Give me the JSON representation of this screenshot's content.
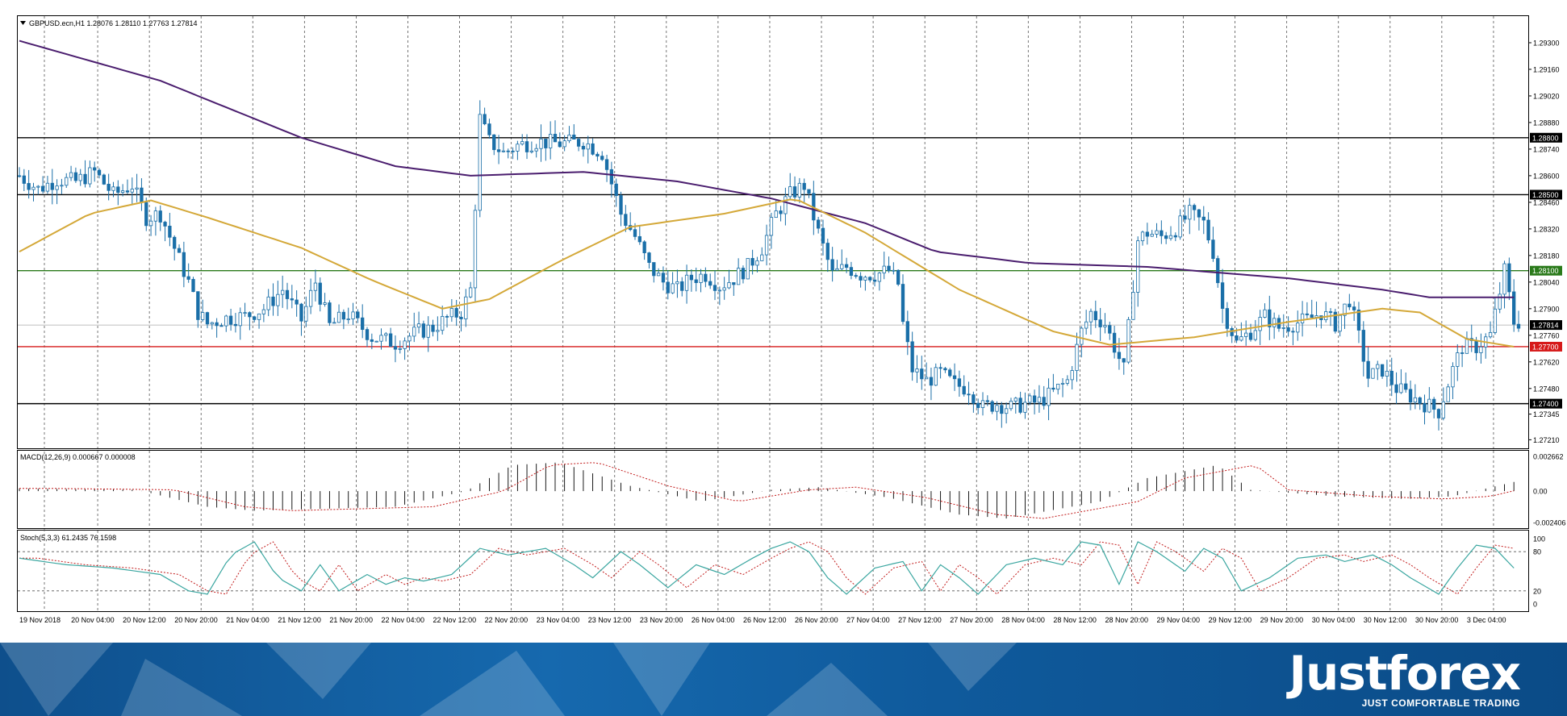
{
  "header_label": "GBPUSD.ecn,H1  1.28076 1.28110 1.27763 1.27814",
  "macd_label": "MACD(12,26,9) 0.000667 0.000008",
  "stoch_label": "Stoch(5,3,3) 61.2435 76.1598",
  "price_ticks": [
    "1.29300",
    "1.29160",
    "1.29020",
    "1.28880",
    "1.28740",
    "1.28600",
    "1.28460",
    "1.28320",
    "1.28180",
    "1.28040",
    "1.27900",
    "1.27760",
    "1.27620",
    "1.27480",
    "1.27345",
    "1.27210"
  ],
  "macd_ticks": [
    "0.002662",
    "0.00",
    "-0.002406"
  ],
  "stoch_ticks": [
    "100",
    "80",
    "20",
    "0"
  ],
  "time_labels": [
    "19 Nov 2018",
    "20 Nov 04:00",
    "20 Nov 12:00",
    "20 Nov 20:00",
    "21 Nov 04:00",
    "21 Nov 12:00",
    "21 Nov 20:00",
    "22 Nov 04:00",
    "22 Nov 12:00",
    "22 Nov 20:00",
    "23 Nov 04:00",
    "23 Nov 12:00",
    "23 Nov 20:00",
    "26 Nov 04:00",
    "26 Nov 12:00",
    "26 Nov 20:00",
    "27 Nov 04:00",
    "27 Nov 12:00",
    "27 Nov 20:00",
    "28 Nov 04:00",
    "28 Nov 12:00",
    "28 Nov 20:00",
    "29 Nov 04:00",
    "29 Nov 12:00",
    "29 Nov 20:00",
    "30 Nov 04:00",
    "30 Nov 12:00",
    "30 Nov 20:00",
    "3 Dec 04:00"
  ],
  "brand": {
    "name": "Justforex",
    "slogan": "JUST COMFORTABLE TRADING"
  },
  "colors": {
    "candle_up": "#ffffff",
    "candle_down": "#1a6fa8",
    "ma_slow": "#4a1d6e",
    "ma_fast": "#d4a838",
    "support": "#d61a1a",
    "pivot": "#2a7a1a",
    "level": "#000000",
    "stoch_main": "#3aa6a0",
    "stoch_signal": "#c21a1a",
    "macd_signal": "#c21a1a"
  },
  "chart_data": {
    "type": "candlestick",
    "symbol": "GBPUSD.ecn",
    "timeframe": "H1",
    "ohlc_last": {
      "open": 1.28076,
      "high": 1.2811,
      "low": 1.27763,
      "close": 1.27814
    },
    "y_range": [
      1.27165,
      1.2944
    ],
    "horizontal_levels": [
      {
        "price": 1.288,
        "label": "1.28800",
        "color": "#000000"
      },
      {
        "price": 1.285,
        "label": "1.28500",
        "color": "#000000"
      },
      {
        "price": 1.281,
        "label": "1.28100",
        "color": "#2a7a1a"
      },
      {
        "price": 1.27814,
        "label": "1.27814",
        "color": "#aaaaaa"
      },
      {
        "price": 1.277,
        "label": "1.27700",
        "color": "#d61a1a"
      },
      {
        "price": 1.274,
        "label": "1.27400",
        "color": "#000000"
      }
    ],
    "close_path": [
      [
        0,
        1.286
      ],
      [
        4,
        1.2853
      ],
      [
        8,
        1.2858
      ],
      [
        12,
        1.2857
      ],
      [
        16,
        1.2862
      ],
      [
        20,
        1.285
      ],
      [
        24,
        1.2855
      ],
      [
        27,
        1.2838
      ],
      [
        30,
        1.284
      ],
      [
        33,
        1.2822
      ],
      [
        36,
        1.2804
      ],
      [
        38,
        1.2788
      ],
      [
        40,
        1.2782
      ],
      [
        44,
        1.2785
      ],
      [
        48,
        1.2786
      ],
      [
        52,
        1.279
      ],
      [
        56,
        1.28
      ],
      [
        60,
        1.2784
      ],
      [
        63,
        1.2804
      ],
      [
        66,
        1.2781
      ],
      [
        70,
        1.2787
      ],
      [
        75,
        1.2775
      ],
      [
        80,
        1.2772
      ],
      [
        85,
        1.2778
      ],
      [
        88,
        1.278
      ],
      [
        91,
        1.2785
      ],
      [
        94,
        1.2788
      ],
      [
        96,
        1.28
      ],
      [
        98,
        1.289
      ],
      [
        100,
        1.2878
      ],
      [
        103,
        1.2872
      ],
      [
        106,
        1.2876
      ],
      [
        110,
        1.2878
      ],
      [
        115,
        1.2877
      ],
      [
        120,
        1.2878
      ],
      [
        124,
        1.2872
      ],
      [
        128,
        1.284
      ],
      [
        131,
        1.2828
      ],
      [
        134,
        1.2812
      ],
      [
        137,
        1.2804
      ],
      [
        140,
        1.28
      ],
      [
        143,
        1.2806
      ],
      [
        146,
        1.2808
      ],
      [
        149,
        1.2802
      ],
      [
        152,
        1.2806
      ],
      [
        155,
        1.2812
      ],
      [
        158,
        1.2822
      ],
      [
        161,
        1.284
      ],
      [
        164,
        1.285
      ],
      [
        167,
        1.2855
      ],
      [
        170,
        1.283
      ],
      [
        173,
        1.2808
      ],
      [
        176,
        1.2812
      ],
      [
        179,
        1.2808
      ],
      [
        182,
        1.2808
      ],
      [
        185,
        1.281
      ],
      [
        187,
        1.2803
      ],
      [
        188,
        1.2782
      ],
      [
        190,
        1.2758
      ],
      [
        193,
        1.2752
      ],
      [
        196,
        1.2756
      ],
      [
        199,
        1.275
      ],
      [
        202,
        1.2748
      ],
      [
        205,
        1.2738
      ],
      [
        208,
        1.274
      ],
      [
        211,
        1.2738
      ],
      [
        214,
        1.274
      ],
      [
        217,
        1.2741
      ],
      [
        220,
        1.2746
      ],
      [
        223,
        1.2752
      ],
      [
        226,
        1.2778
      ],
      [
        228,
        1.2788
      ],
      [
        231,
        1.2782
      ],
      [
        233,
        1.277
      ],
      [
        235,
        1.2758
      ],
      [
        236,
        1.278
      ],
      [
        238,
        1.2826
      ],
      [
        240,
        1.283
      ],
      [
        243,
        1.2828
      ],
      [
        246,
        1.2832
      ],
      [
        249,
        1.284
      ],
      [
        252,
        1.2835
      ],
      [
        254,
        1.282
      ],
      [
        256,
        1.279
      ],
      [
        259,
        1.2772
      ],
      [
        262,
        1.2778
      ],
      [
        265,
        1.2786
      ],
      [
        268,
        1.278
      ],
      [
        271,
        1.2782
      ],
      [
        274,
        1.2784
      ],
      [
        277,
        1.2788
      ],
      [
        280,
        1.2782
      ],
      [
        283,
        1.2795
      ],
      [
        285,
        1.2775
      ],
      [
        287,
        1.2754
      ],
      [
        290,
        1.2758
      ],
      [
        293,
        1.2748
      ],
      [
        296,
        1.2744
      ],
      [
        299,
        1.274
      ],
      [
        302,
        1.2736
      ],
      [
        305,
        1.2758
      ],
      [
        307,
        1.277
      ],
      [
        310,
        1.277
      ],
      [
        313,
        1.2776
      ],
      [
        316,
        1.281
      ],
      [
        318,
        1.2783
      ]
    ],
    "ma_slow": [
      [
        0,
        1.2931
      ],
      [
        30,
        1.291
      ],
      [
        60,
        1.288
      ],
      [
        80,
        1.2865
      ],
      [
        96,
        1.286
      ],
      [
        120,
        1.2862
      ],
      [
        140,
        1.2857
      ],
      [
        160,
        1.2848
      ],
      [
        180,
        1.2835
      ],
      [
        195,
        1.282
      ],
      [
        215,
        1.2814
      ],
      [
        240,
        1.2812
      ],
      [
        270,
        1.2806
      ],
      [
        290,
        1.28
      ],
      [
        300,
        1.2796
      ],
      [
        317,
        1.2796
      ]
    ],
    "ma_fast": [
      [
        0,
        1.282
      ],
      [
        15,
        1.284
      ],
      [
        28,
        1.2847
      ],
      [
        40,
        1.2838
      ],
      [
        60,
        1.2822
      ],
      [
        75,
        1.2805
      ],
      [
        90,
        1.279
      ],
      [
        100,
        1.2795
      ],
      [
        115,
        1.2815
      ],
      [
        130,
        1.2833
      ],
      [
        150,
        1.284
      ],
      [
        165,
        1.2848
      ],
      [
        180,
        1.283
      ],
      [
        200,
        1.28
      ],
      [
        220,
        1.2778
      ],
      [
        232,
        1.2771
      ],
      [
        250,
        1.2775
      ],
      [
        270,
        1.2783
      ],
      [
        290,
        1.279
      ],
      [
        298,
        1.2788
      ],
      [
        308,
        1.2774
      ],
      [
        318,
        1.277
      ]
    ],
    "macd_hist": [
      [
        0,
        0.0002
      ],
      [
        25,
        0.0001
      ],
      [
        40,
        -0.0012
      ],
      [
        50,
        -0.0015
      ],
      [
        80,
        -0.0012
      ],
      [
        95,
        0.0
      ],
      [
        105,
        0.002
      ],
      [
        115,
        0.0022
      ],
      [
        130,
        0.0004
      ],
      [
        145,
        -0.0008
      ],
      [
        160,
        0.0001
      ],
      [
        170,
        0.0003
      ],
      [
        185,
        -0.0005
      ],
      [
        200,
        -0.0018
      ],
      [
        210,
        -0.0021
      ],
      [
        230,
        -0.0008
      ],
      [
        240,
        0.001
      ],
      [
        255,
        0.002
      ],
      [
        262,
        0.0001
      ],
      [
        280,
        -0.0004
      ],
      [
        295,
        -0.0006
      ],
      [
        305,
        -0.0004
      ],
      [
        318,
        0.0007
      ]
    ],
    "stoch_main": [
      [
        0,
        70
      ],
      [
        10,
        60
      ],
      [
        20,
        55
      ],
      [
        30,
        45
      ],
      [
        36,
        20
      ],
      [
        40,
        15
      ],
      [
        45,
        75
      ],
      [
        50,
        95
      ],
      [
        55,
        40
      ],
      [
        60,
        20
      ],
      [
        64,
        60
      ],
      [
        68,
        20
      ],
      [
        74,
        45
      ],
      [
        78,
        30
      ],
      [
        82,
        40
      ],
      [
        86,
        35
      ],
      [
        92,
        45
      ],
      [
        98,
        85
      ],
      [
        104,
        75
      ],
      [
        112,
        85
      ],
      [
        118,
        60
      ],
      [
        122,
        40
      ],
      [
        128,
        80
      ],
      [
        132,
        60
      ],
      [
        138,
        25
      ],
      [
        144,
        60
      ],
      [
        150,
        45
      ],
      [
        156,
        70
      ],
      [
        160,
        85
      ],
      [
        164,
        95
      ],
      [
        168,
        80
      ],
      [
        172,
        40
      ],
      [
        176,
        15
      ],
      [
        182,
        55
      ],
      [
        188,
        65
      ],
      [
        192,
        20
      ],
      [
        196,
        60
      ],
      [
        200,
        40
      ],
      [
        204,
        15
      ],
      [
        210,
        60
      ],
      [
        216,
        70
      ],
      [
        222,
        60
      ],
      [
        226,
        95
      ],
      [
        230,
        90
      ],
      [
        234,
        30
      ],
      [
        238,
        95
      ],
      [
        242,
        80
      ],
      [
        248,
        50
      ],
      [
        252,
        85
      ],
      [
        256,
        70
      ],
      [
        260,
        20
      ],
      [
        266,
        40
      ],
      [
        272,
        70
      ],
      [
        278,
        75
      ],
      [
        282,
        65
      ],
      [
        288,
        75
      ],
      [
        292,
        60
      ],
      [
        296,
        40
      ],
      [
        302,
        15
      ],
      [
        306,
        55
      ],
      [
        310,
        90
      ],
      [
        314,
        85
      ],
      [
        318,
        55
      ]
    ]
  }
}
